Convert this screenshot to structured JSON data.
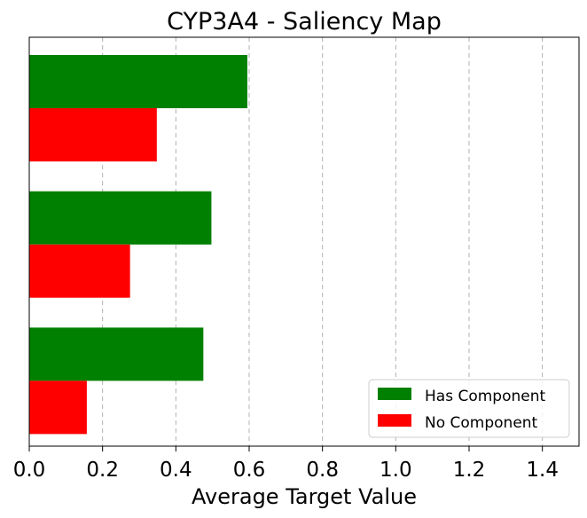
{
  "chart_data": {
    "type": "bar",
    "orientation": "horizontal",
    "title": "CYP3A4 - Saliency Map",
    "xlabel": "Average Target Value",
    "ylabel": "",
    "xlim": [
      0,
      1.5
    ],
    "xticks": [
      "0.0",
      "0.2",
      "0.4",
      "0.6",
      "0.8",
      "1.0",
      "1.2",
      "1.4"
    ],
    "grid": "x-dashed",
    "legend_position": "bottom-right",
    "categories": [
      "",
      "",
      ""
    ],
    "series": [
      {
        "name": "Has Component",
        "color": "#008000",
        "values": [
          0.595,
          0.497,
          0.475
        ]
      },
      {
        "name": "No Component",
        "color": "#ff0000",
        "values": [
          0.348,
          0.275,
          0.157
        ]
      }
    ]
  }
}
